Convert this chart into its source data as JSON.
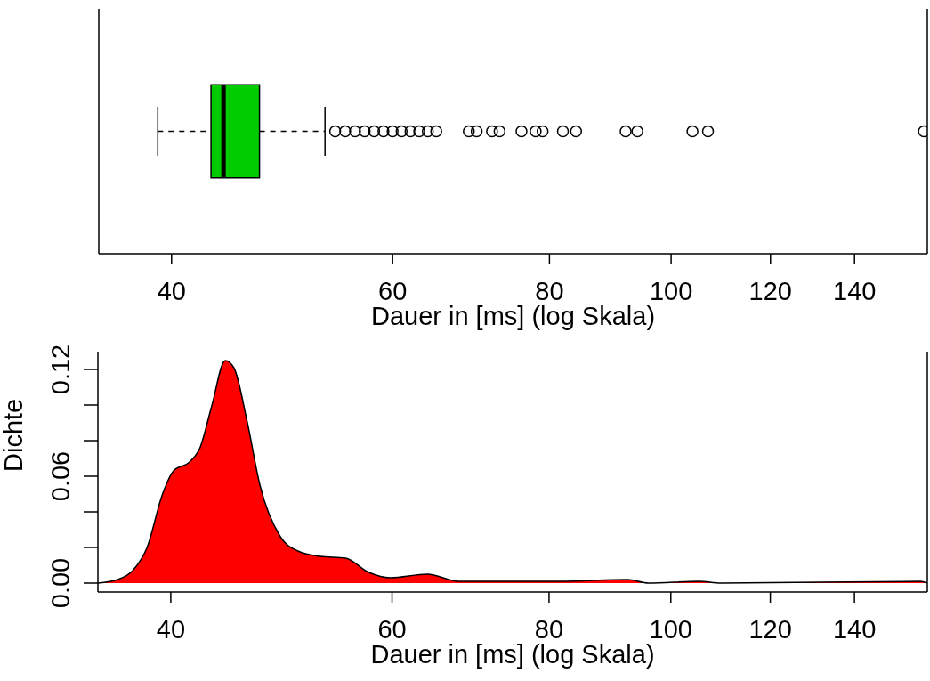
{
  "chart_data": [
    {
      "type": "box",
      "orientation": "horizontal",
      "categories": [
        null
      ],
      "color": "#00cc00",
      "log": "x",
      "xlim": [
        35,
        160
      ],
      "xticks": [
        40,
        60,
        80,
        100,
        120,
        140
      ],
      "xlabel": "Dauer in [ms] (log Skala)",
      "tick_labels": "x",
      "boxes": [
        {
          "low": 39,
          "q1": 43,
          "median": 44,
          "q3": 47,
          "high": 53,
          "outliers": [
            54,
            55,
            56,
            57,
            58,
            59,
            60,
            61,
            62,
            63,
            64,
            65,
            69,
            70,
            72,
            73,
            76,
            78,
            79,
            82,
            84,
            92,
            94,
            104,
            107,
            159
          ]
        }
      ]
    },
    {
      "type": "area",
      "color": "#ff0000",
      "log": "x",
      "xlim": [
        35,
        160
      ],
      "xticks": [
        40,
        60,
        80,
        100,
        120,
        140
      ],
      "ylim": [
        -0.005,
        0.13
      ],
      "yticks": [
        {
          "value": 0,
          "label": "0.00"
        },
        {
          "value": 0.02,
          "label": null
        },
        {
          "value": 0.04,
          "label": null
        },
        {
          "value": 0.06,
          "label": "0.06"
        },
        {
          "value": 0.08,
          "label": null
        },
        {
          "value": 0.1,
          "label": null
        },
        {
          "value": 0.12,
          "label": "0.12"
        }
      ],
      "xlabel": "Dauer in [ms] (log Skala)",
      "ylabel": "Dichte",
      "x": [
        35,
        36.3,
        37.3,
        38.3,
        39.4,
        40.2,
        41.4,
        42.2,
        43.1,
        44.2,
        44.9,
        46,
        47.1,
        48.9,
        50.5,
        52.6,
        55.1,
        57.5,
        59.8,
        64,
        67.8,
        72.3,
        81.6,
        92.4,
        96,
        105.3,
        109.6,
        158,
        160
      ],
      "values": [
        0,
        0.002,
        0.007,
        0.02,
        0.05,
        0.063,
        0.068,
        0.076,
        0.099,
        0.125,
        0.121,
        0.091,
        0.055,
        0.026,
        0.018,
        0.015,
        0.014,
        0.006,
        0.003,
        0.005,
        0.001,
        0.001,
        0.001,
        0.002,
        0,
        0.001,
        0,
        0.001,
        0
      ]
    }
  ]
}
